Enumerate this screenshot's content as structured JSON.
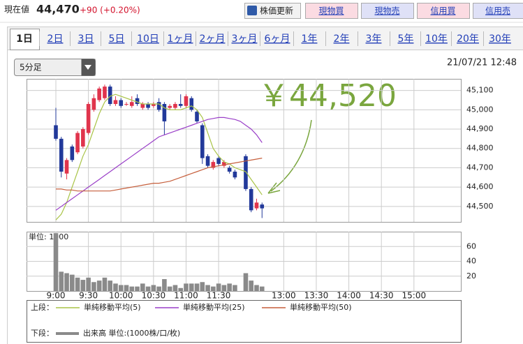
{
  "header": {
    "price_label": "現在値",
    "price": "44,470",
    "change": "+90 (+0.20%)",
    "buttons": [
      "株価更新",
      "現物買",
      "現物売",
      "信用買",
      "信用売"
    ]
  },
  "tabs": [
    "1日",
    "2日",
    "3日",
    "5日",
    "10日",
    "1ヶ月",
    "2ヶ月",
    "3ヶ月",
    "6ヶ月",
    "1年",
    "2年",
    "3年",
    "5年",
    "10年",
    "20年",
    "30年"
  ],
  "interval_select": "5分足",
  "timestamp": "21/07/21 12:48",
  "chart_data": [
    {
      "type": "candlestick",
      "annotation": "￥44,520",
      "legend_label": "上段：",
      "up_color": "#e0344c",
      "down_color": "#22399a",
      "categories": [
        "9:00",
        null,
        null,
        null,
        null,
        null,
        "9:30",
        null,
        null,
        null,
        null,
        null,
        "10:00",
        null,
        null,
        null,
        null,
        null,
        "10:30",
        null,
        null,
        null,
        null,
        null,
        "11:00",
        null,
        null,
        null,
        null,
        null,
        "11:30",
        null,
        null,
        null,
        null,
        null,
        null,
        null,
        null,
        null,
        null,
        null,
        "13:00",
        null,
        null,
        null,
        null,
        null,
        "13:30",
        null,
        null,
        null,
        null,
        null,
        "14:00",
        null,
        null,
        null,
        null,
        null,
        "14:30",
        null,
        null,
        null,
        null,
        null,
        "15:00"
      ],
      "open": [
        44920,
        44850,
        44670,
        44810,
        44780,
        44810,
        44880,
        45000,
        45050,
        45060,
        45120,
        45030,
        45050,
        45030,
        45020,
        45060,
        45010,
        45030,
        45020,
        45040,
        45030,
        45010,
        45010,
        45030,
        45020,
        45060,
        44990,
        44920,
        44760,
        44700,
        44750,
        44710,
        44700,
        44680,
        null,
        44760,
        44590,
        44490,
        44510,
        null,
        null,
        null,
        null,
        null,
        null,
        null,
        null,
        null,
        null,
        null,
        null,
        null,
        null,
        null,
        null,
        null,
        null,
        null,
        null,
        null,
        null,
        null,
        null,
        null,
        null,
        null,
        null
      ],
      "high": [
        45010,
        44860,
        44750,
        44820,
        44890,
        44910,
        45040,
        45080,
        45120,
        45130,
        45130,
        45070,
        45060,
        45040,
        45070,
        45080,
        45040,
        45040,
        45040,
        45060,
        45040,
        45030,
        45040,
        45080,
        45080,
        45070,
        45000,
        44930,
        44770,
        44740,
        44760,
        44740,
        44710,
        44690,
        null,
        44770,
        44600,
        44540,
        44520,
        null,
        null,
        null,
        null,
        null,
        null,
        null,
        null,
        null,
        null,
        null,
        null,
        null,
        null,
        null,
        null,
        null,
        null,
        null,
        null,
        null,
        null,
        null,
        null,
        null,
        null,
        null,
        null
      ],
      "low": [
        44840,
        44650,
        44640,
        44730,
        44770,
        44800,
        44870,
        44990,
        45040,
        45050,
        45020,
        45020,
        45010,
        45020,
        45010,
        45020,
        45000,
        45000,
        45010,
        44990,
        44870,
        45000,
        45000,
        45010,
        45010,
        44990,
        44930,
        44720,
        44700,
        44690,
        44710,
        44700,
        44670,
        44640,
        null,
        44580,
        44470,
        44480,
        44440,
        null,
        null,
        null,
        null,
        null,
        null,
        null,
        null,
        null,
        null,
        null,
        null,
        null,
        null,
        null,
        null,
        null,
        null,
        null,
        null,
        null,
        null,
        null,
        null,
        null,
        null,
        null,
        null
      ],
      "close": [
        44850,
        44680,
        44740,
        44740,
        44880,
        44900,
        45030,
        45060,
        45110,
        45120,
        45030,
        45050,
        45020,
        45030,
        45040,
        45030,
        45030,
        45010,
        45030,
        45000,
        44940,
        45020,
        45030,
        45020,
        45070,
        45000,
        44940,
        44750,
        44710,
        44730,
        44720,
        44730,
        44680,
        44650,
        null,
        44590,
        44480,
        44520,
        44490,
        null,
        null,
        null,
        null,
        null,
        null,
        null,
        null,
        null,
        null,
        null,
        null,
        null,
        null,
        null,
        null,
        null,
        null,
        null,
        null,
        null,
        null,
        null,
        null,
        null,
        null,
        null,
        null
      ],
      "series": [
        {
          "name": "単純移動平均(5)",
          "color": "#a9c447",
          "values": [
            44430,
            44460,
            44520,
            44600,
            44680,
            44760,
            44820,
            44900,
            44980,
            45040,
            45070,
            45080,
            45070,
            45060,
            45050,
            45040,
            45030,
            45030,
            45030,
            45030,
            45010,
            45000,
            45000,
            45000,
            45010,
            45020,
            45000,
            44960,
            44880,
            44800,
            44760,
            44730,
            44720,
            44700,
            44690,
            44680,
            44640,
            44600,
            44560,
            null,
            null,
            null,
            null,
            null,
            null,
            null,
            null,
            null,
            null,
            null,
            null,
            null,
            null,
            null,
            null,
            null,
            null,
            null,
            null,
            null,
            null,
            null,
            null,
            null,
            null,
            null,
            null
          ]
        },
        {
          "name": "単純移動平均(25)",
          "color": "#9a3fc8",
          "values": [
            44480,
            44500,
            44520,
            44540,
            44560,
            44580,
            44600,
            44620,
            44640,
            44660,
            44680,
            44700,
            44720,
            44740,
            44760,
            44780,
            44800,
            44820,
            44840,
            44860,
            44870,
            44880,
            44890,
            44900,
            44910,
            44920,
            44930,
            44940,
            44950,
            44955,
            44960,
            44960,
            44955,
            44950,
            44940,
            44920,
            44900,
            44870,
            44830,
            null,
            null,
            null,
            null,
            null,
            null,
            null,
            null,
            null,
            null,
            null,
            null,
            null,
            null,
            null,
            null,
            null,
            null,
            null,
            null,
            null,
            null,
            null,
            null,
            null,
            null,
            null,
            null
          ]
        },
        {
          "name": "単純移動平均(50)",
          "color": "#c65f3c",
          "values": [
            44590,
            44590,
            44585,
            44585,
            44580,
            44580,
            44580,
            44580,
            44580,
            44580,
            44580,
            44585,
            44590,
            44595,
            44600,
            44605,
            44610,
            44615,
            44620,
            44620,
            44625,
            44630,
            44640,
            44650,
            44660,
            44670,
            44680,
            44690,
            44700,
            44705,
            44710,
            44715,
            44720,
            44725,
            44730,
            44735,
            44740,
            44745,
            44750,
            null,
            null,
            null,
            null,
            null,
            null,
            null,
            null,
            null,
            null,
            null,
            null,
            null,
            null,
            null,
            null,
            null,
            null,
            null,
            null,
            null,
            null,
            null,
            null,
            null,
            null,
            null,
            null
          ]
        }
      ],
      "ylim": [
        44420,
        45160
      ],
      "yticks": [
        {
          "value": 44500,
          "label": "44,500"
        },
        {
          "value": 44600,
          "label": "44,600"
        },
        {
          "value": 44700,
          "label": "44,700"
        },
        {
          "value": 44800,
          "label": "44,800"
        },
        {
          "value": 44900,
          "label": "44,900"
        },
        {
          "value": 45000,
          "label": "45,000"
        },
        {
          "value": 45100,
          "label": "45,100"
        }
      ],
      "grid": true
    },
    {
      "type": "bar",
      "unit_label": "単位: 1000",
      "legend_label": "下段：",
      "series": [
        {
          "name": "出来高 単位:(1000株/口/枚)",
          "color": "#8a8a8a",
          "values": [
            78,
            26,
            24,
            22,
            18,
            15,
            18,
            12,
            14,
            18,
            14,
            10,
            8,
            8,
            6,
            6,
            10,
            6,
            8,
            6,
            16,
            6,
            8,
            4,
            10,
            10,
            10,
            12,
            8,
            6,
            10,
            8,
            10,
            8,
            null,
            24,
            14,
            8,
            6,
            null,
            null,
            null,
            null,
            null,
            null,
            null,
            null,
            null,
            null,
            null,
            null,
            null,
            null,
            null,
            null,
            null,
            null,
            null,
            null,
            null,
            null,
            null,
            null,
            null,
            null,
            null,
            null
          ]
        }
      ],
      "ylim": [
        0,
        80
      ],
      "yticks": [
        20,
        40,
        60
      ],
      "grid": true
    }
  ]
}
